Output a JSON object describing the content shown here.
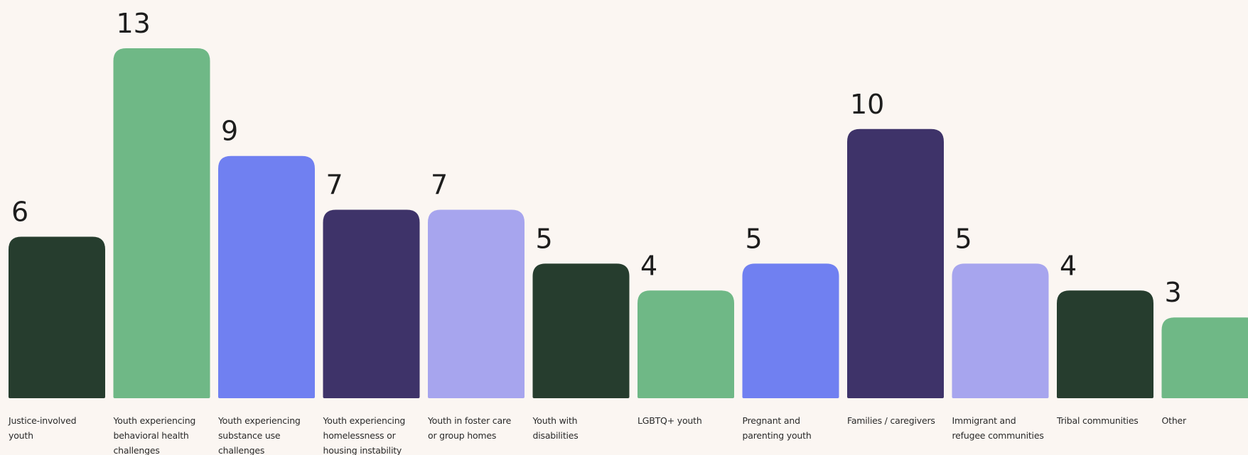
{
  "chart_data": {
    "type": "bar",
    "categories": [
      "Justice-involved youth",
      "Youth experiencing behavioral health challenges",
      "Youth experiencing substance use challenges",
      "Youth experiencing homelessness or housing instability",
      "Youth in foster care or group homes",
      "Youth with disabilities",
      "LGBTQ+ youth",
      "Pregnant and parenting youth",
      "Families / caregivers",
      "Immigrant and refugee communities",
      "Tribal communities",
      "Other"
    ],
    "values": [
      6,
      13,
      9,
      7,
      7,
      5,
      4,
      5,
      10,
      5,
      4,
      3
    ],
    "value_labels": [
      "6",
      "13",
      "9",
      "7",
      "7",
      "5",
      "4",
      "5",
      "10",
      "5",
      "4",
      "3"
    ],
    "colors": [
      "#263d2e",
      "#6fb886",
      "#7080f1",
      "#3e3369",
      "#a7a5ee",
      "#263d2e",
      "#6fb886",
      "#7080f1",
      "#3e3369",
      "#a7a5ee",
      "#263d2e",
      "#6fb886"
    ],
    "ylim": [
      0,
      13
    ],
    "grid": false,
    "legend": false
  }
}
